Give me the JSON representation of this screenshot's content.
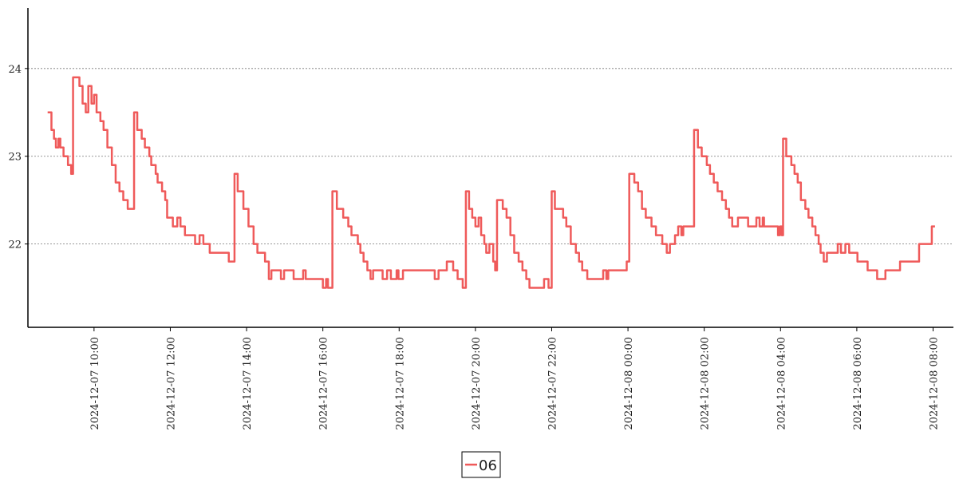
{
  "chart_data": {
    "type": "line",
    "step": "post",
    "x": [
      "2024-12-07 08:47",
      "2024-12-07 08:53",
      "2024-12-07 08:57",
      "2024-12-07 09:00",
      "2024-12-07 09:04",
      "2024-12-07 09:07",
      "2024-12-07 09:12",
      "2024-12-07 09:19",
      "2024-12-07 09:24",
      "2024-12-07 09:27",
      "2024-12-07 09:37",
      "2024-12-07 09:42",
      "2024-12-07 09:47",
      "2024-12-07 09:51",
      "2024-12-07 09:56",
      "2024-12-07 10:00",
      "2024-12-07 10:04",
      "2024-12-07 10:10",
      "2024-12-07 10:15",
      "2024-12-07 10:21",
      "2024-12-07 10:28",
      "2024-12-07 10:34",
      "2024-12-07 10:40",
      "2024-12-07 10:46",
      "2024-12-07 10:53",
      "2024-12-07 11:03",
      "2024-12-07 11:08",
      "2024-12-07 11:15",
      "2024-12-07 11:20",
      "2024-12-07 11:27",
      "2024-12-07 11:30",
      "2024-12-07 11:37",
      "2024-12-07 11:40",
      "2024-12-07 11:47",
      "2024-12-07 11:52",
      "2024-12-07 11:55",
      "2024-12-07 12:04",
      "2024-12-07 12:11",
      "2024-12-07 12:16",
      "2024-12-07 12:23",
      "2024-12-07 12:39",
      "2024-12-07 12:46",
      "2024-12-07 12:52",
      "2024-12-07 13:02",
      "2024-12-07 13:32",
      "2024-12-07 13:41",
      "2024-12-07 13:46",
      "2024-12-07 13:55",
      "2024-12-07 14:03",
      "2024-12-07 14:11",
      "2024-12-07 14:17",
      "2024-12-07 14:29",
      "2024-12-07 14:35",
      "2024-12-07 14:39",
      "2024-12-07 14:54",
      "2024-12-07 14:59",
      "2024-12-07 15:14",
      "2024-12-07 15:29",
      "2024-12-07 15:33",
      "2024-12-07 16:00",
      "2024-12-07 16:05",
      "2024-12-07 16:08",
      "2024-12-07 16:15",
      "2024-12-07 16:22",
      "2024-12-07 16:32",
      "2024-12-07 16:40",
      "2024-12-07 16:45",
      "2024-12-07 16:55",
      "2024-12-07 16:59",
      "2024-12-07 17:04",
      "2024-12-07 17:10",
      "2024-12-07 17:15",
      "2024-12-07 17:19",
      "2024-12-07 17:34",
      "2024-12-07 17:41",
      "2024-12-07 17:47",
      "2024-12-07 17:56",
      "2024-12-07 17:59",
      "2024-12-07 18:06",
      "2024-12-07 18:56",
      "2024-12-07 19:02",
      "2024-12-07 19:15",
      "2024-12-07 19:25",
      "2024-12-07 19:32",
      "2024-12-07 19:40",
      "2024-12-07 19:45",
      "2024-12-07 19:50",
      "2024-12-07 19:55",
      "2024-12-07 20:00",
      "2024-12-07 20:05",
      "2024-12-07 20:09",
      "2024-12-07 20:14",
      "2024-12-07 20:17",
      "2024-12-07 20:22",
      "2024-12-07 20:28",
      "2024-12-07 20:31",
      "2024-12-07 20:34",
      "2024-12-07 20:43",
      "2024-12-07 20:49",
      "2024-12-07 20:55",
      "2024-12-07 21:01",
      "2024-12-07 21:08",
      "2024-12-07 21:14",
      "2024-12-07 21:20",
      "2024-12-07 21:25",
      "2024-12-07 21:48",
      "2024-12-07 21:55",
      "2024-12-07 22:00",
      "2024-12-07 22:05",
      "2024-12-07 22:18",
      "2024-12-07 22:23",
      "2024-12-07 22:30",
      "2024-12-07 22:38",
      "2024-12-07 22:43",
      "2024-12-07 22:48",
      "2024-12-07 22:56",
      "2024-12-07 23:21",
      "2024-12-07 23:26",
      "2024-12-07 23:29",
      "2024-12-07 23:58",
      "2024-12-08 00:02",
      "2024-12-08 00:10",
      "2024-12-08 00:16",
      "2024-12-08 00:22",
      "2024-12-08 00:28",
      "2024-12-08 00:37",
      "2024-12-08 00:44",
      "2024-12-08 00:54",
      "2024-12-08 01:01",
      "2024-12-08 01:06",
      "2024-12-08 01:14",
      "2024-12-08 01:19",
      "2024-12-08 01:24",
      "2024-12-08 01:27",
      "2024-12-08 01:44",
      "2024-12-08 01:50",
      "2024-12-08 01:56",
      "2024-12-08 02:04",
      "2024-12-08 02:09",
      "2024-12-08 02:15",
      "2024-12-08 02:21",
      "2024-12-08 02:28",
      "2024-12-08 02:34",
      "2024-12-08 02:39",
      "2024-12-08 02:44",
      "2024-12-08 02:53",
      "2024-12-08 03:09",
      "2024-12-08 03:22",
      "2024-12-08 03:27",
      "2024-12-08 03:32",
      "2024-12-08 03:34",
      "2024-12-08 03:56",
      "2024-12-08 03:59",
      "2024-12-08 04:02",
      "2024-12-08 04:04",
      "2024-12-08 04:09",
      "2024-12-08 04:17",
      "2024-12-08 04:22",
      "2024-12-08 04:27",
      "2024-12-08 04:32",
      "2024-12-08 04:39",
      "2024-12-08 04:44",
      "2024-12-08 04:50",
      "2024-12-08 04:55",
      "2024-12-08 05:00",
      "2024-12-08 05:03",
      "2024-12-08 05:08",
      "2024-12-08 05:13",
      "2024-12-08 05:30",
      "2024-12-08 05:35",
      "2024-12-08 05:42",
      "2024-12-08 05:48",
      "2024-12-08 06:01",
      "2024-12-08 06:17",
      "2024-12-08 06:32",
      "2024-12-08 06:45",
      "2024-12-08 07:08",
      "2024-12-08 07:38",
      "2024-12-08 07:58",
      "2024-12-08 08:03"
    ],
    "series": [
      {
        "name": "06",
        "color": "#ef5a5a",
        "values": [
          23.5,
          23.3,
          23.2,
          23.1,
          23.2,
          23.1,
          23.0,
          22.9,
          22.8,
          23.9,
          23.8,
          23.6,
          23.5,
          23.8,
          23.6,
          23.7,
          23.5,
          23.4,
          23.3,
          23.1,
          22.9,
          22.7,
          22.6,
          22.5,
          22.4,
          23.5,
          23.3,
          23.2,
          23.1,
          23.0,
          22.9,
          22.8,
          22.7,
          22.6,
          22.5,
          22.3,
          22.2,
          22.3,
          22.2,
          22.1,
          22.0,
          22.1,
          22.0,
          21.9,
          21.8,
          22.8,
          22.6,
          22.4,
          22.2,
          22.0,
          21.9,
          21.8,
          21.6,
          21.7,
          21.6,
          21.7,
          21.6,
          21.7,
          21.6,
          21.5,
          21.6,
          21.5,
          22.6,
          22.4,
          22.3,
          22.2,
          22.1,
          22.0,
          21.9,
          21.8,
          21.7,
          21.6,
          21.7,
          21.6,
          21.7,
          21.6,
          21.7,
          21.6,
          21.7,
          21.6,
          21.7,
          21.8,
          21.7,
          21.6,
          21.5,
          22.6,
          22.4,
          22.3,
          22.2,
          22.3,
          22.1,
          22.0,
          21.9,
          22.0,
          21.8,
          21.7,
          22.5,
          22.4,
          22.3,
          22.1,
          21.9,
          21.8,
          21.7,
          21.6,
          21.5,
          21.6,
          21.5,
          22.6,
          22.4,
          22.3,
          22.2,
          22.0,
          21.9,
          21.8,
          21.7,
          21.6,
          21.7,
          21.6,
          21.7,
          21.8,
          22.8,
          22.7,
          22.6,
          22.4,
          22.3,
          22.2,
          22.1,
          22.0,
          21.9,
          22.0,
          22.1,
          22.2,
          22.1,
          22.2,
          23.3,
          23.1,
          23.0,
          22.9,
          22.8,
          22.7,
          22.6,
          22.5,
          22.4,
          22.3,
          22.2,
          22.3,
          22.2,
          22.3,
          22.2,
          22.3,
          22.2,
          22.1,
          22.2,
          22.1,
          23.2,
          23.0,
          22.9,
          22.8,
          22.7,
          22.5,
          22.4,
          22.3,
          22.2,
          22.1,
          22.0,
          21.9,
          21.8,
          21.9,
          22.0,
          21.9,
          22.0,
          21.9,
          21.8,
          21.7,
          21.6,
          21.7,
          21.8,
          22.0,
          22.2,
          22.2
        ]
      }
    ],
    "xlim": [
      "2024-12-07 08:16",
      "2024-12-08 08:32"
    ],
    "xticks": [
      "2024-12-07 10:00",
      "2024-12-07 12:00",
      "2024-12-07 14:00",
      "2024-12-07 16:00",
      "2024-12-07 18:00",
      "2024-12-07 20:00",
      "2024-12-07 22:00",
      "2024-12-08 00:00",
      "2024-12-08 02:00",
      "2024-12-08 04:00",
      "2024-12-08 06:00",
      "2024-12-08 08:00"
    ],
    "ylim": [
      21.05,
      24.69
    ],
    "yticks": [
      22,
      23,
      24
    ],
    "grid": true,
    "legend": "bottom"
  }
}
